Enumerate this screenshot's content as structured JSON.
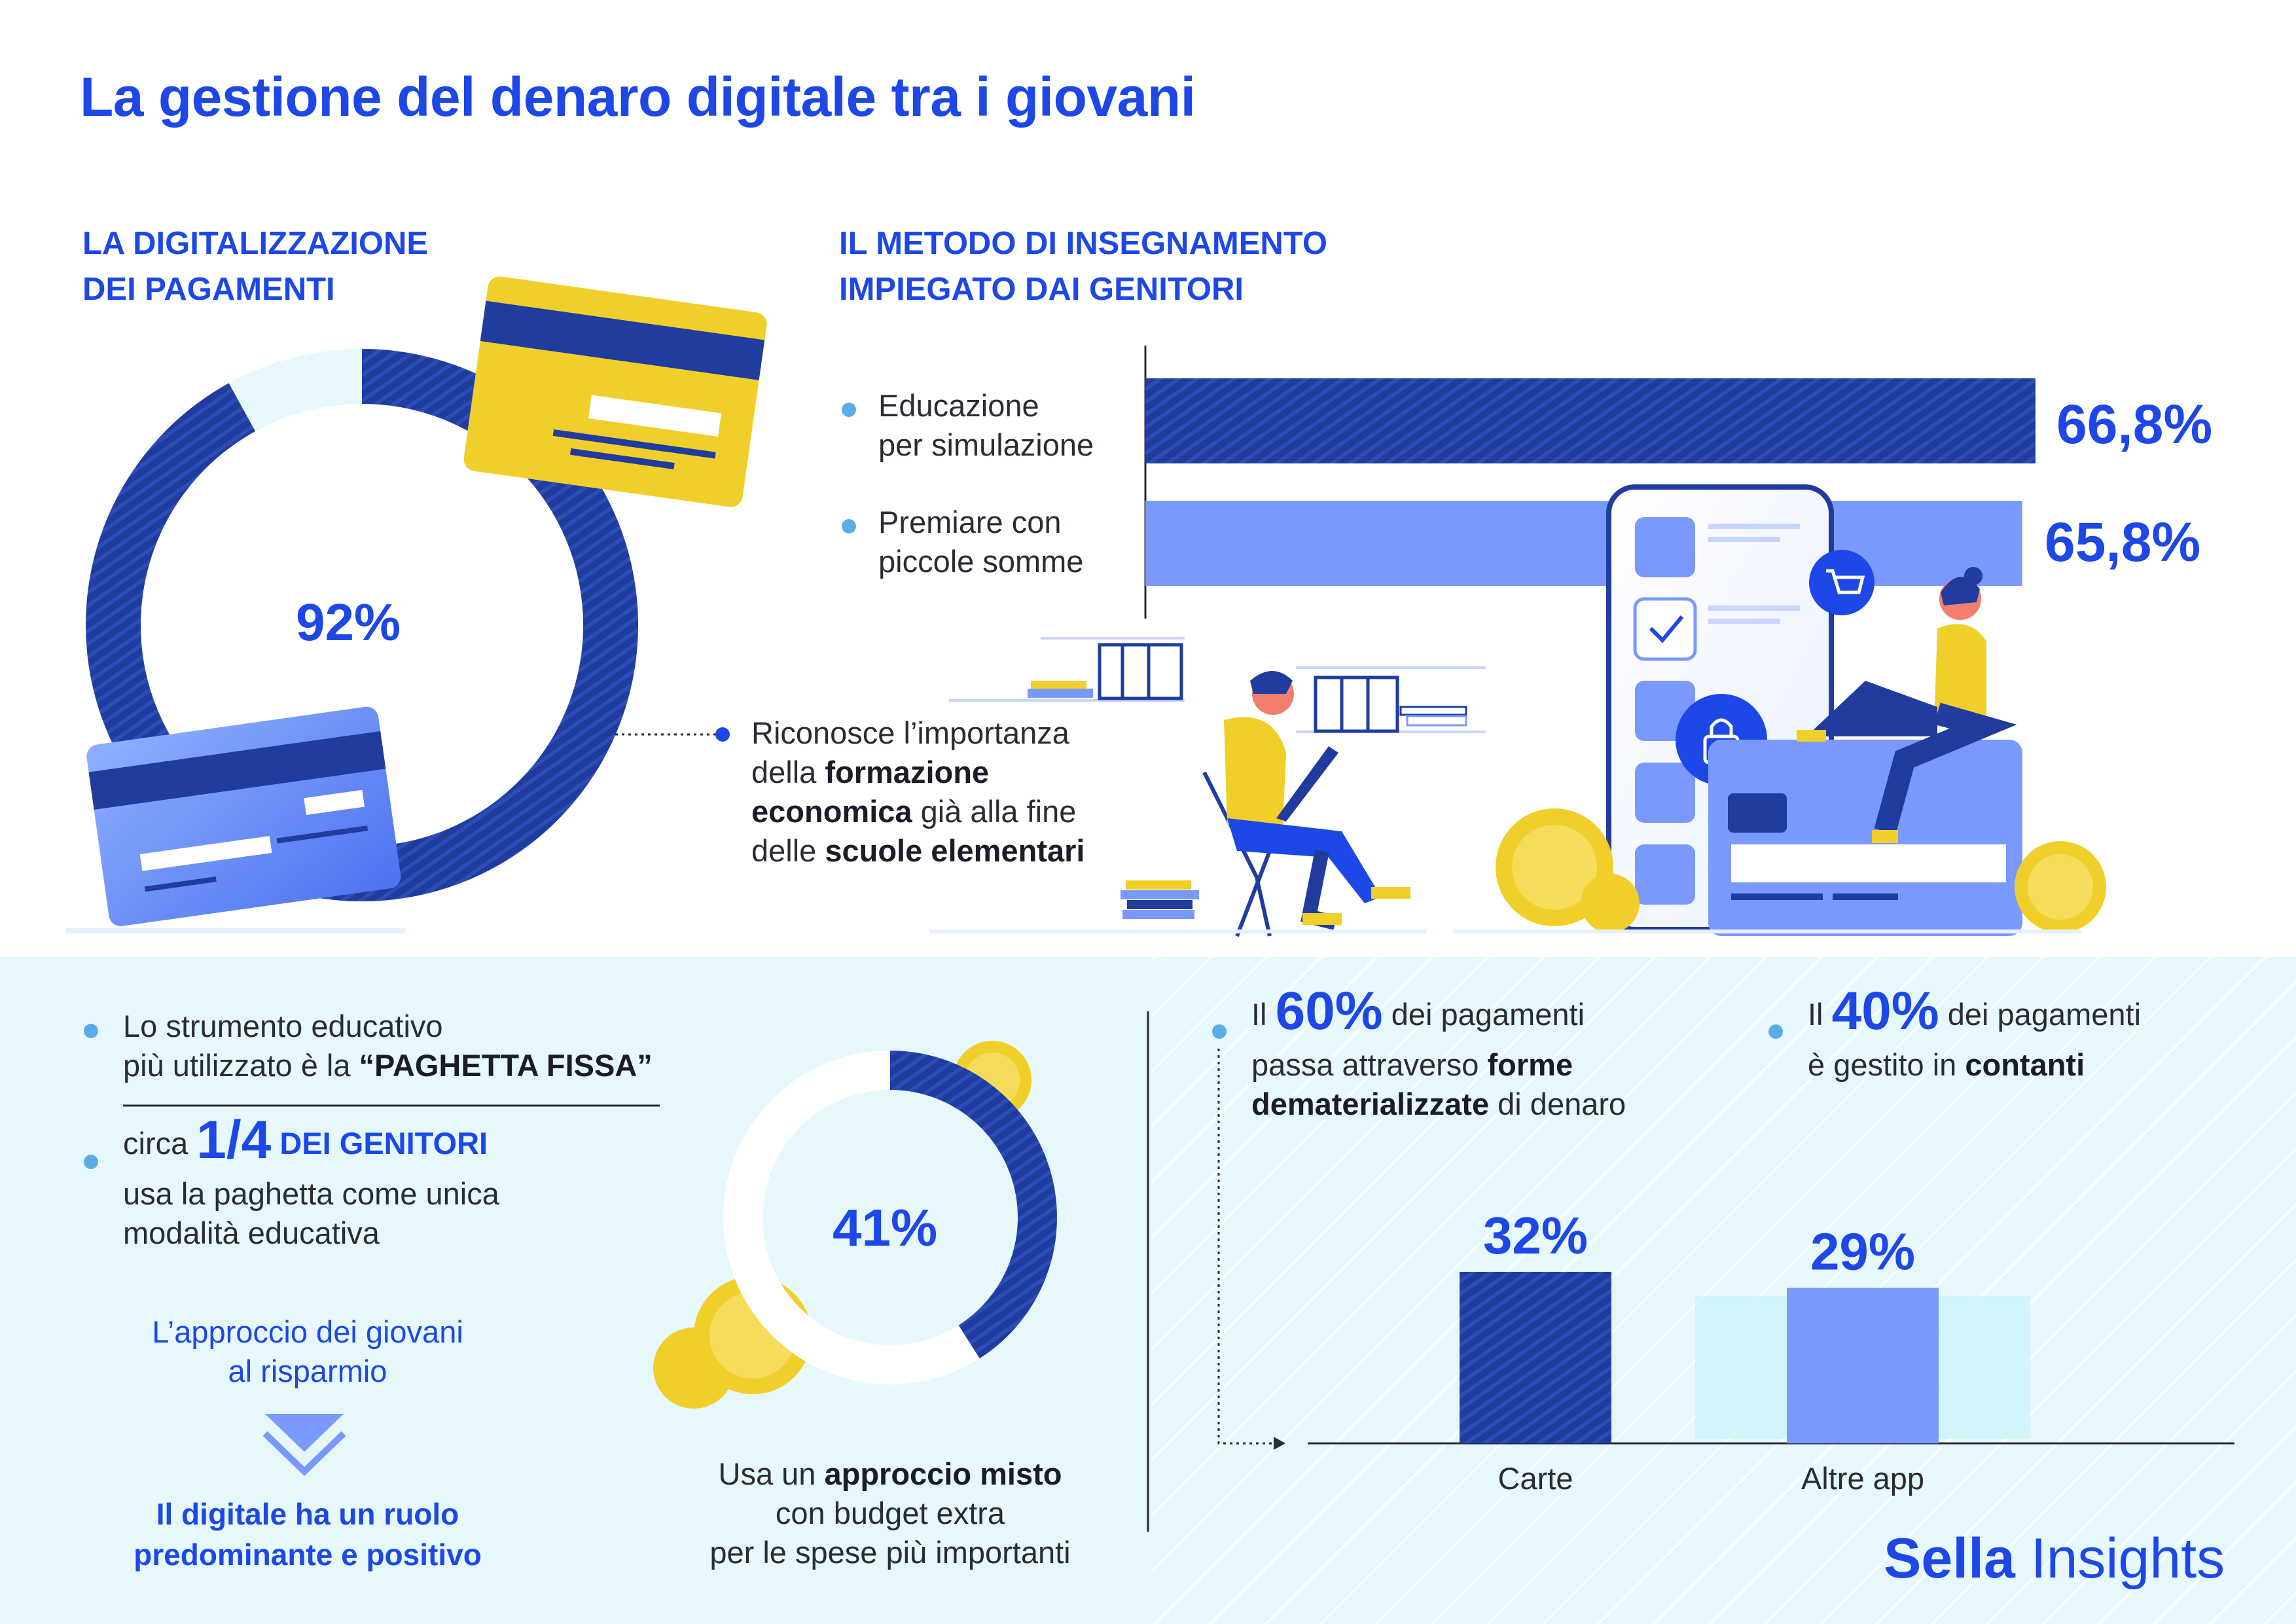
{
  "title": "La gestione del denaro digitale tra i giovani",
  "digitalization": {
    "heading_line1": "LA DIGITALIZZAZIONE",
    "heading_line2": "DEI PAGAMENTI",
    "center_label": "92%",
    "note_line1": "Riconosce l’importanza",
    "note_line2_a": "della ",
    "note_line2_b": "formazione",
    "note_line3_a": "economica",
    "note_line3_b": " già alla fine",
    "note_line4_a": "delle ",
    "note_line4_b": "scuole elementari"
  },
  "teaching": {
    "heading_line1": "IL METODO DI INSEGNAMENTO",
    "heading_line2": "IMPIEGATO DAI GENITORI",
    "item1_line1": "Educazione",
    "item1_line2": "per simulazione",
    "item1_value_label": "66,8%",
    "item2_line1": "Premiare con",
    "item2_line2": "piccole somme",
    "item2_value_label": "65,8%"
  },
  "allowance": {
    "line1": "Lo strumento educativo",
    "line2_a": "più utilizzato è la ",
    "line2_b": "“PAGHETTA FISSA”",
    "quarter_prefix": "circa ",
    "quarter_value": "1/4",
    "quarter_suffix": " DEI GENITORI",
    "quarter_line2": "usa la paghetta come unica",
    "quarter_line3": "modalità educativa",
    "approach_line1": "L’approccio dei giovani",
    "approach_line2": "al risparmio",
    "conclusion_line1": "Il digitale ha un ruolo",
    "conclusion_line2": "predominante e positivo",
    "mixed_center_label": "41%",
    "mixed_line1_a": "Usa un ",
    "mixed_line1_b": "approccio misto",
    "mixed_line2": "con budget extra",
    "mixed_line3": "per le spese più importanti"
  },
  "payments": {
    "p60_a": "Il ",
    "p60_value": "60%",
    "p60_b": " dei pagamenti",
    "p60_line2_a": "passa attraverso ",
    "p60_line2_b": "forme",
    "p60_line3_a": "dematerializzate",
    "p60_line3_b": " di denaro",
    "p40_a": "Il ",
    "p40_value": "40%",
    "p40_b": " dei pagamenti",
    "p40_line2_a": "è gestito in ",
    "p40_line2_b": "contanti"
  },
  "brand": {
    "part1": "Sella",
    "part2": " Insights"
  },
  "colors": {
    "primary_blue": "#1d47e6",
    "dark_blue": "#1f3c9e",
    "light_blue": "#7a99ff",
    "pale_cyan": "#e6f8fb",
    "yellow": "#f0cf2a",
    "bullet": "#5aaee8"
  },
  "chart_data": [
    {
      "type": "pie",
      "center_label": "92%",
      "values": [
        92,
        8
      ]
    },
    {
      "type": "bar",
      "orientation": "horizontal",
      "categories": [
        "Educazione per simulazione",
        "Premiare con piccole somme"
      ],
      "values": [
        66.8,
        65.8
      ],
      "value_labels": [
        "66,8%",
        "65,8%"
      ]
    },
    {
      "type": "pie",
      "center_label": "41%",
      "values": [
        41,
        59
      ]
    },
    {
      "type": "bar",
      "categories": [
        "Carte",
        "Altre app"
      ],
      "values": [
        32,
        29
      ],
      "value_labels": [
        "32%",
        "29%"
      ]
    }
  ]
}
